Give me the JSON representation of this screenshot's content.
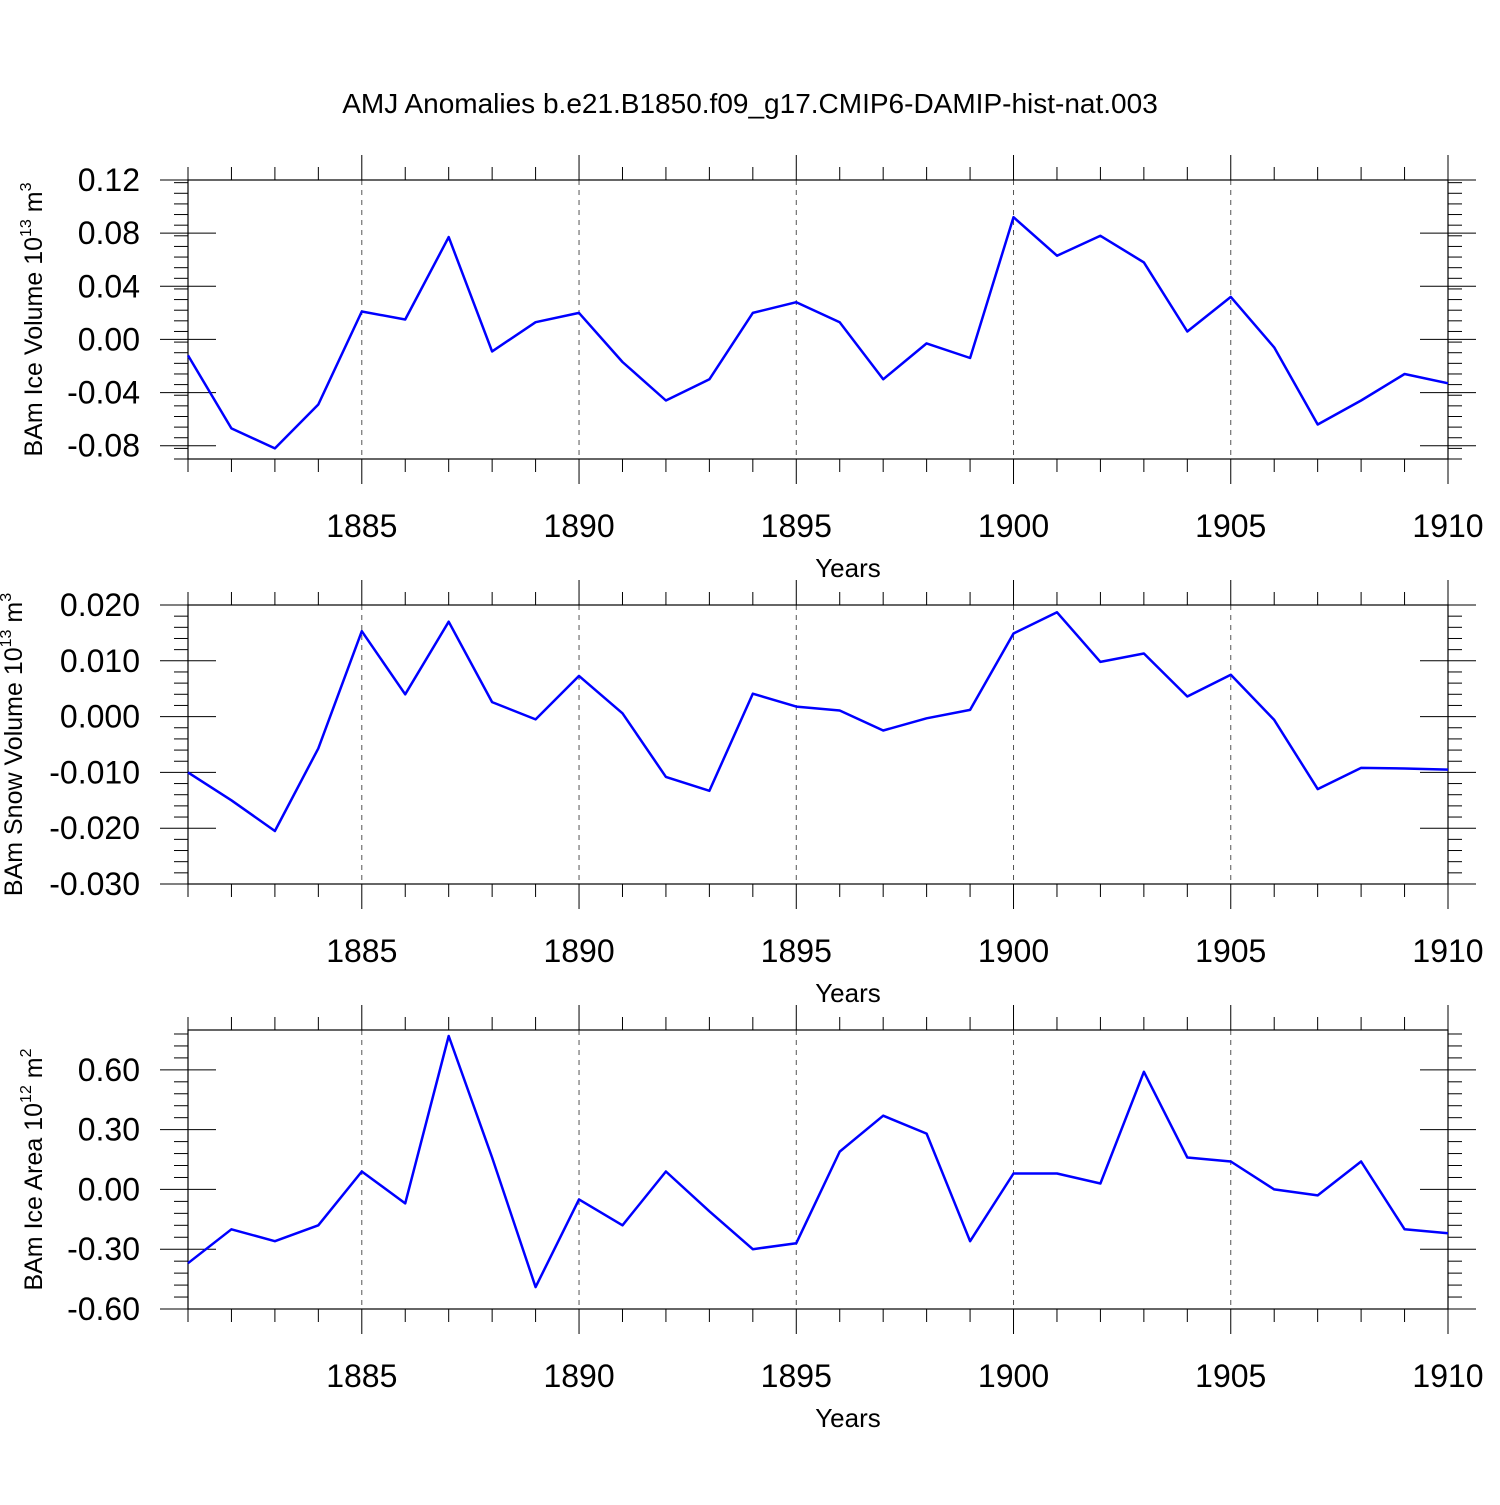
{
  "title": "AMJ Anomalies b.e21.B1850.f09_g17.CMIP6-DAMIP-hist-nat.003",
  "colors": {
    "line": "#0000ff",
    "axis": "#000000",
    "grid": "#555555"
  },
  "chart_data": [
    {
      "type": "line",
      "ylabel_main": "BAm Ice Volume 10",
      "ylabel_sup": "13",
      "ylabel_unit": "m",
      "ylabel_unit_sup": "3",
      "xlabel": "Years",
      "xlim": [
        1881,
        1910
      ],
      "ylim": [
        -0.09,
        0.12
      ],
      "xticks": [
        1885,
        1890,
        1895,
        1900,
        1905,
        1910
      ],
      "xtick_labels": [
        "1885",
        "1890",
        "1895",
        "1900",
        "1905",
        "1910"
      ],
      "yticks": [
        -0.08,
        -0.04,
        0.0,
        0.04,
        0.08,
        0.12
      ],
      "ytick_labels": [
        "-0.08",
        "-0.04",
        "0.00",
        "0.04",
        "0.08",
        "0.12"
      ],
      "grid": "vertical dashed at labeled years",
      "x": [
        1881,
        1882,
        1883,
        1884,
        1885,
        1886,
        1887,
        1888,
        1889,
        1890,
        1891,
        1892,
        1893,
        1894,
        1895,
        1896,
        1897,
        1898,
        1899,
        1900,
        1901,
        1902,
        1903,
        1904,
        1905,
        1906,
        1907,
        1908,
        1909,
        1910
      ],
      "values": [
        -0.012,
        -0.067,
        -0.082,
        -0.049,
        0.021,
        0.015,
        0.077,
        -0.009,
        0.013,
        0.02,
        -0.017,
        -0.046,
        -0.03,
        0.02,
        0.028,
        0.013,
        -0.03,
        -0.003,
        -0.014,
        0.092,
        0.063,
        0.078,
        0.058,
        0.006,
        0.032,
        -0.006,
        -0.064,
        -0.046,
        -0.026,
        -0.033
      ]
    },
    {
      "type": "line",
      "ylabel_main": "BAm Snow Volume 10",
      "ylabel_sup": "13",
      "ylabel_unit": "m",
      "ylabel_unit_sup": "3",
      "xlabel": "Years",
      "xlim": [
        1881,
        1910
      ],
      "ylim": [
        -0.03,
        0.02
      ],
      "xticks": [
        1885,
        1890,
        1895,
        1900,
        1905,
        1910
      ],
      "xtick_labels": [
        "1885",
        "1890",
        "1895",
        "1900",
        "1905",
        "1910"
      ],
      "yticks": [
        -0.03,
        -0.02,
        -0.01,
        0.0,
        0.01,
        0.02
      ],
      "ytick_labels": [
        "-0.030",
        "-0.020",
        "-0.010",
        "0.000",
        "0.010",
        "0.020"
      ],
      "grid": "vertical dashed at labeled years",
      "x": [
        1881,
        1882,
        1883,
        1884,
        1885,
        1886,
        1887,
        1888,
        1889,
        1890,
        1891,
        1892,
        1893,
        1894,
        1895,
        1896,
        1897,
        1898,
        1899,
        1900,
        1901,
        1902,
        1903,
        1904,
        1905,
        1906,
        1907,
        1908,
        1909,
        1910
      ],
      "values": [
        -0.01,
        -0.015,
        -0.0205,
        -0.0057,
        0.0153,
        0.004,
        0.017,
        0.0026,
        -0.0005,
        0.0073,
        0.0006,
        -0.0108,
        -0.0133,
        0.0041,
        0.0018,
        0.0011,
        -0.0025,
        -0.0003,
        0.0012,
        0.0149,
        0.0187,
        0.0098,
        0.0113,
        0.0036,
        0.0075,
        -0.0006,
        -0.013,
        -0.0092,
        -0.0093,
        -0.0095
      ]
    },
    {
      "type": "line",
      "ylabel_main": "BAm Ice Area 10",
      "ylabel_sup": "12",
      "ylabel_unit": "m",
      "ylabel_unit_sup": "2",
      "xlabel": "Years",
      "xlim": [
        1881,
        1910
      ],
      "ylim": [
        -0.6,
        0.8
      ],
      "xticks": [
        1885,
        1890,
        1895,
        1900,
        1905,
        1910
      ],
      "xtick_labels": [
        "1885",
        "1890",
        "1895",
        "1900",
        "1905",
        "1910"
      ],
      "yticks": [
        -0.6,
        -0.3,
        0.0,
        0.3,
        0.6
      ],
      "ytick_labels": [
        "-0.60",
        "-0.30",
        "0.00",
        "0.30",
        "0.60"
      ],
      "grid": "vertical dashed at labeled years",
      "x": [
        1881,
        1882,
        1883,
        1884,
        1885,
        1886,
        1887,
        1888,
        1889,
        1890,
        1891,
        1892,
        1893,
        1894,
        1895,
        1896,
        1897,
        1898,
        1899,
        1900,
        1901,
        1902,
        1903,
        1904,
        1905,
        1906,
        1907,
        1908,
        1909,
        1910
      ],
      "values": [
        -0.37,
        -0.2,
        -0.26,
        -0.18,
        0.09,
        -0.07,
        0.77,
        0.16,
        -0.49,
        -0.05,
        -0.18,
        0.09,
        -0.11,
        -0.3,
        -0.27,
        0.19,
        0.37,
        0.28,
        -0.26,
        0.08,
        0.08,
        0.03,
        0.59,
        0.16,
        0.14,
        0.0,
        -0.03,
        0.14,
        -0.2,
        -0.22
      ]
    }
  ]
}
